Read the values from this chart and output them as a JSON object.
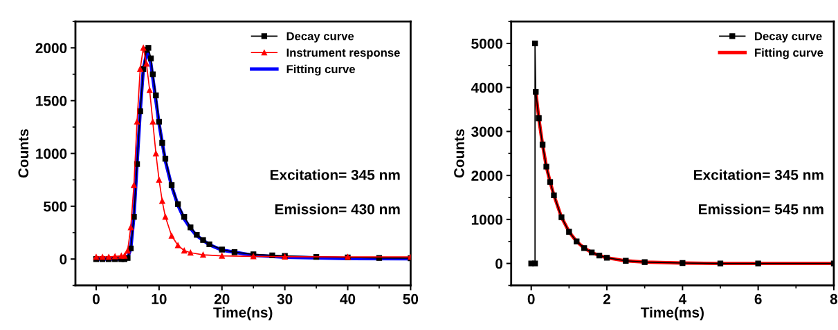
{
  "chart_data": [
    {
      "type": "line",
      "xlabel": "Time(ns)",
      "ylabel": "Counts",
      "xlim": [
        -3.3,
        50
      ],
      "ylim": [
        -250,
        2250
      ],
      "xticks": [
        0,
        10,
        20,
        30,
        40,
        50
      ],
      "yticks": [
        0,
        500,
        1000,
        1500,
        2000
      ],
      "grid": false,
      "legend": "top right",
      "annotations": [
        "Excitation= 345 nm",
        "Emission= 430 nm"
      ],
      "series": [
        {
          "name": "Decay curve",
          "color": "#000000",
          "marker": "square",
          "x": [
            0,
            1,
            2,
            3,
            4,
            4.5,
            5,
            5.5,
            6,
            6.5,
            7,
            7.5,
            8,
            8.3,
            8.7,
            9,
            9.5,
            10,
            10.5,
            11,
            12,
            13,
            14,
            15,
            16,
            17,
            18,
            20,
            22,
            25,
            28,
            30,
            35,
            40,
            45,
            50
          ],
          "values": [
            0,
            0,
            0,
            0,
            0,
            0,
            10,
            100,
            400,
            900,
            1400,
            1800,
            1980,
            2000,
            1900,
            1750,
            1550,
            1300,
            1100,
            950,
            700,
            520,
            400,
            300,
            230,
            180,
            140,
            90,
            65,
            45,
            35,
            30,
            20,
            15,
            10,
            8
          ]
        },
        {
          "name": "Instrument response",
          "color": "#ff0000",
          "marker": "triangle",
          "x": [
            0,
            1,
            2,
            3,
            4,
            4.5,
            5,
            5.5,
            6,
            6.5,
            7,
            7.5,
            8,
            8.5,
            9,
            9.5,
            10,
            10.5,
            11,
            12,
            13,
            14,
            15,
            17,
            20,
            25,
            30,
            40,
            50
          ],
          "values": [
            20,
            20,
            20,
            25,
            30,
            30,
            80,
            300,
            700,
            1300,
            1800,
            2000,
            1850,
            1600,
            1300,
            1000,
            750,
            550,
            400,
            220,
            130,
            80,
            60,
            40,
            30,
            25,
            22,
            20,
            20
          ]
        },
        {
          "name": "Fitting curve",
          "color": "#0000ff",
          "marker": "none",
          "x": [
            0,
            4.5,
            5,
            5.5,
            6,
            6.5,
            7,
            7.5,
            8.1,
            8.7,
            9.5,
            10,
            11,
            12,
            13,
            14,
            15,
            16,
            18,
            20,
            25,
            30,
            40,
            50
          ],
          "values": [
            0,
            0,
            10,
            100,
            400,
            900,
            1400,
            1800,
            1970,
            1850,
            1500,
            1280,
            930,
            690,
            510,
            380,
            290,
            220,
            135,
            85,
            35,
            18,
            5,
            2
          ]
        }
      ]
    },
    {
      "type": "line",
      "xlabel": "Time(ms)",
      "ylabel": "Counts",
      "xlim": [
        -0.53,
        8
      ],
      "ylim": [
        -500,
        5500
      ],
      "xticks": [
        0,
        2,
        4,
        6,
        8
      ],
      "yticks": [
        0,
        1000,
        2000,
        3000,
        4000,
        5000
      ],
      "grid": false,
      "legend": "top right",
      "annotations": [
        "Excitation= 345 nm",
        "Emission= 545 nm"
      ],
      "series": [
        {
          "name": "Decay curve",
          "color": "#000000",
          "marker": "square",
          "x": [
            0,
            0.1,
            0.1,
            0.12,
            0.2,
            0.3,
            0.4,
            0.5,
            0.6,
            0.8,
            1.0,
            1.2,
            1.4,
            1.6,
            1.8,
            2,
            2.5,
            3,
            4,
            5,
            6,
            8
          ],
          "values": [
            0,
            0,
            5000,
            3900,
            3300,
            2700,
            2200,
            1850,
            1550,
            1050,
            720,
            500,
            350,
            250,
            180,
            130,
            60,
            30,
            10,
            0,
            0,
            0
          ]
        },
        {
          "name": "Fitting curve",
          "color": "#ff0000",
          "marker": "none",
          "x": [
            0.12,
            0.2,
            0.3,
            0.4,
            0.5,
            0.6,
            0.8,
            1.0,
            1.2,
            1.4,
            1.6,
            1.8,
            2,
            2.5,
            3,
            4,
            5,
            6,
            8
          ],
          "values": [
            3900,
            3300,
            2700,
            2200,
            1850,
            1550,
            1050,
            720,
            500,
            350,
            250,
            180,
            130,
            60,
            30,
            10,
            0,
            0,
            0
          ]
        }
      ]
    }
  ]
}
